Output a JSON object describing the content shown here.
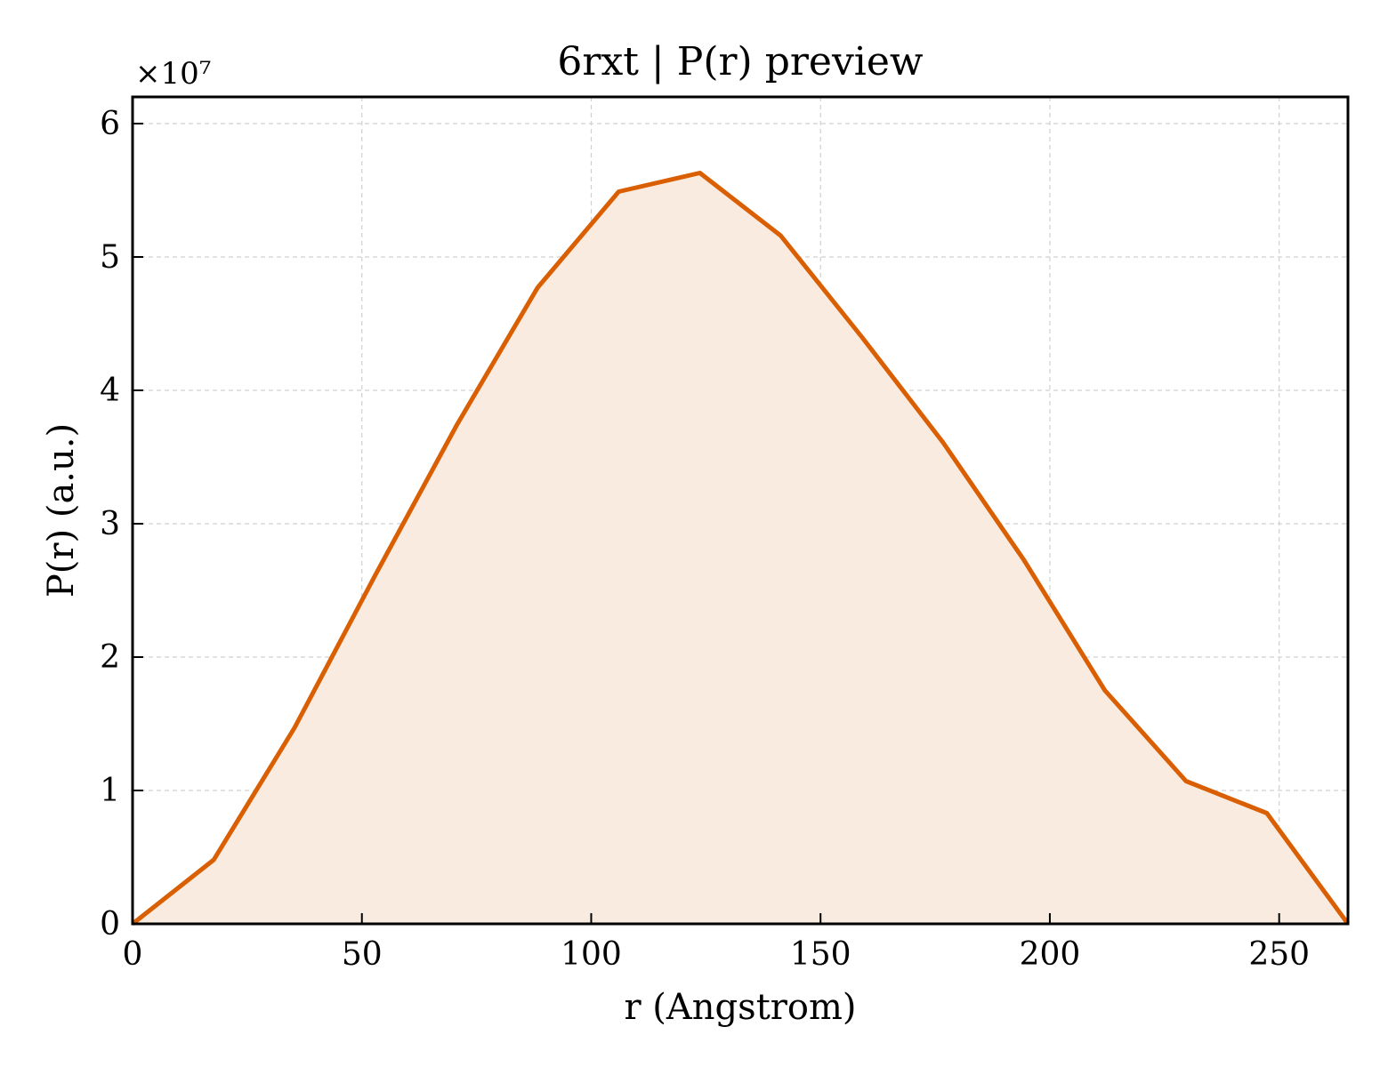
{
  "chart_data": {
    "type": "area",
    "title": "6rxt | P(r) preview",
    "xlabel": "r (Angstrom)",
    "ylabel": "P(r) (a.u.)",
    "y_offset_label": "×10⁷",
    "y_scale": 10000000,
    "xlim": [
      0,
      265
    ],
    "ylim": [
      0,
      6.2
    ],
    "xticks": [
      0,
      50,
      100,
      150,
      200,
      250
    ],
    "yticks": [
      0,
      1,
      2,
      3,
      4,
      5,
      6
    ],
    "grid": true,
    "line_color": "#d95f02",
    "fill_color": "#f9ebe0",
    "x": [
      0,
      17.7,
      35.3,
      53.0,
      70.7,
      88.3,
      106.0,
      123.7,
      141.3,
      159.0,
      176.7,
      194.3,
      212.0,
      229.7,
      247.3,
      265
    ],
    "y": [
      0,
      0.48,
      1.47,
      2.62,
      3.74,
      4.77,
      5.49,
      5.63,
      5.16,
      4.4,
      3.61,
      2.73,
      1.75,
      1.07,
      0.83,
      0
    ]
  }
}
